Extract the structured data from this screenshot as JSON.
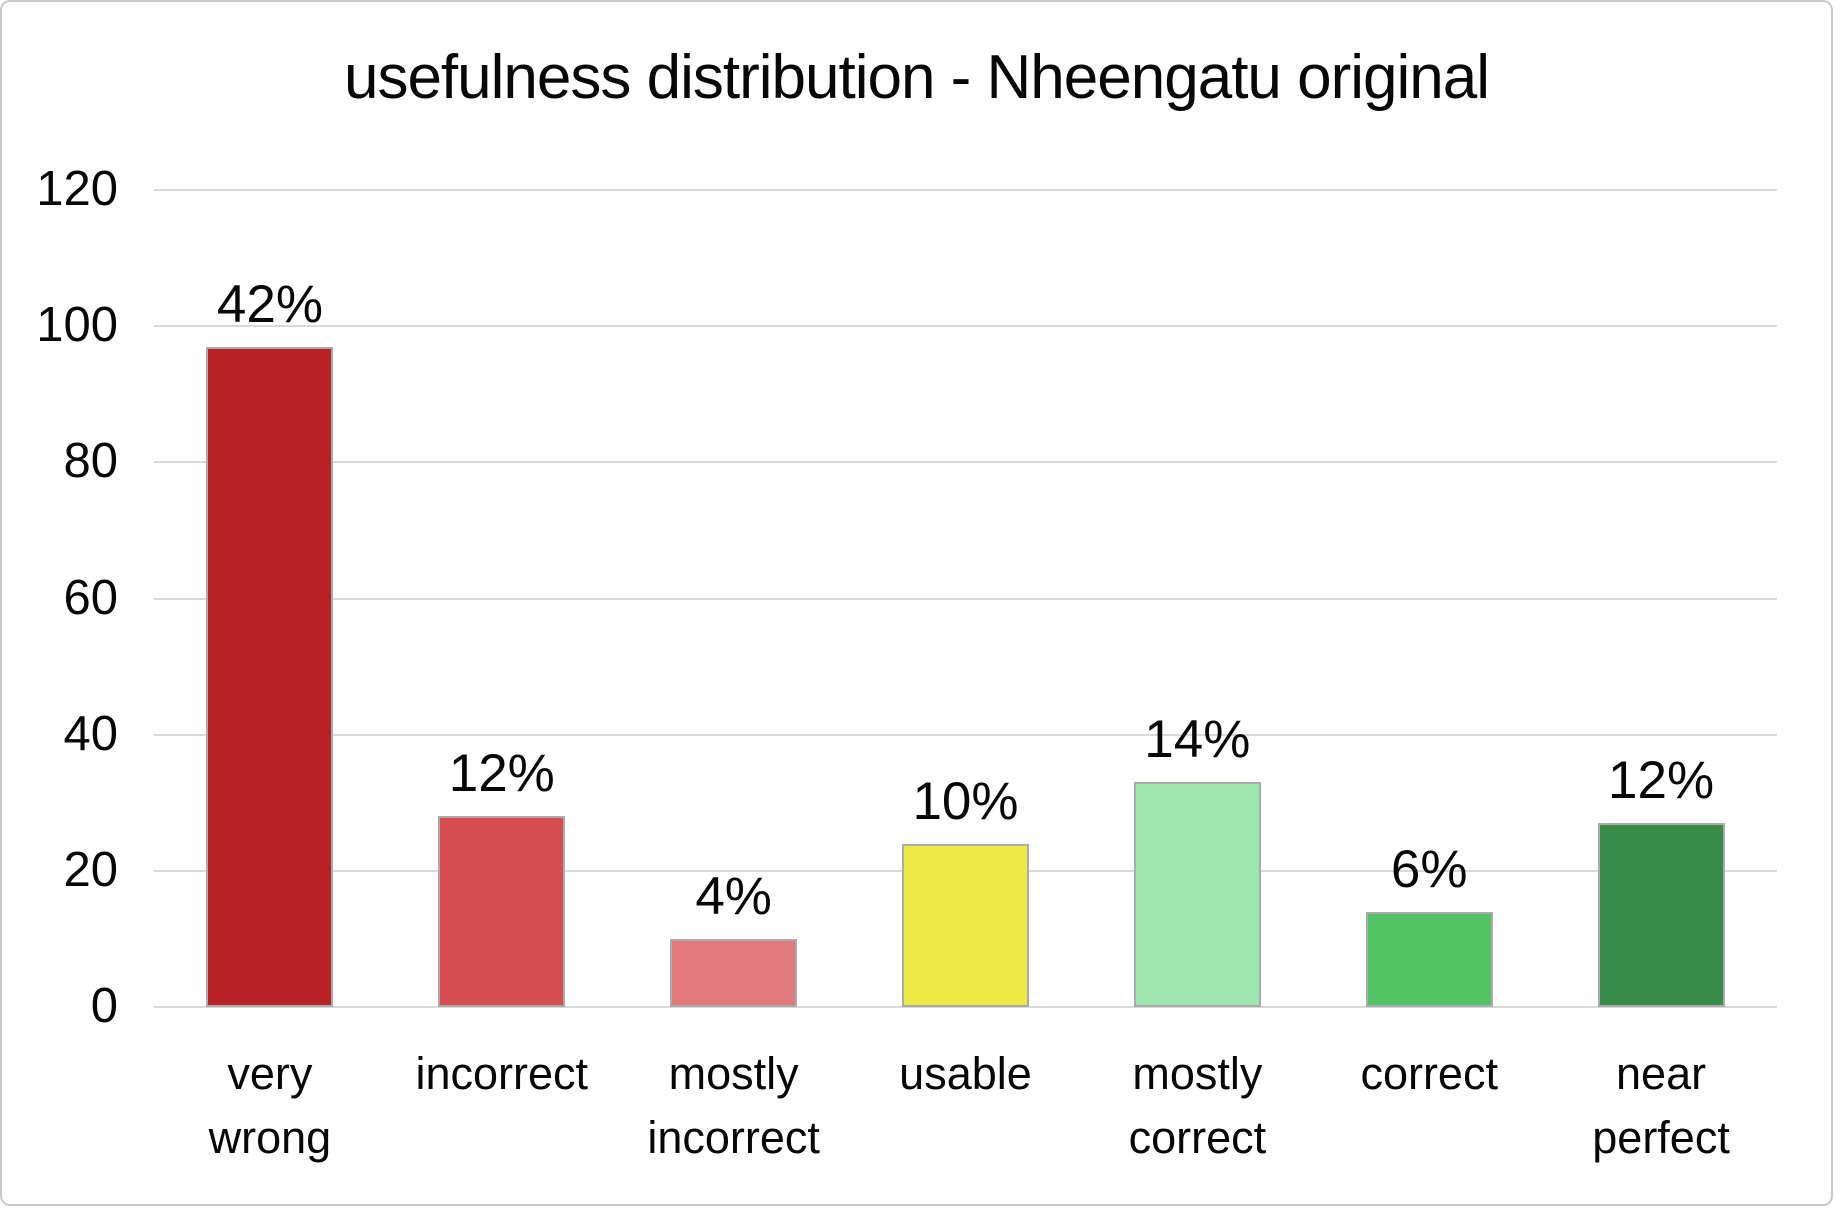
{
  "chart_data": {
    "type": "bar",
    "title": "usefulness distribution - Nheengatu original",
    "categories": [
      "very wrong",
      "incorrect",
      "mostly incorrect",
      "usable",
      "mostly correct",
      "correct",
      "near perfect"
    ],
    "categories_wrapped": [
      "very\nwrong",
      "incorrect",
      "mostly\nincorrect",
      "usable",
      "mostly\ncorrect",
      "correct",
      "near\nperfect"
    ],
    "values": [
      97,
      28,
      10,
      24,
      33,
      14,
      27
    ],
    "data_labels": [
      "42%",
      "12%",
      "4%",
      "10%",
      "14%",
      "6%",
      "12%"
    ],
    "bar_colors": [
      "#b82227",
      "#d74d52",
      "#e27a7e",
      "#edea46",
      "#9de6b0",
      "#53c464",
      "#398b49"
    ],
    "bar_border_color": "#ababab",
    "xlabel": "",
    "ylabel": "",
    "ylim": [
      0,
      120
    ],
    "yticks": [
      0,
      20,
      40,
      60,
      80,
      100,
      120
    ],
    "grid": "horizontal",
    "gridline_color": "#d9d9d9",
    "legend_position": "none",
    "background_color": "#ffffff"
  }
}
